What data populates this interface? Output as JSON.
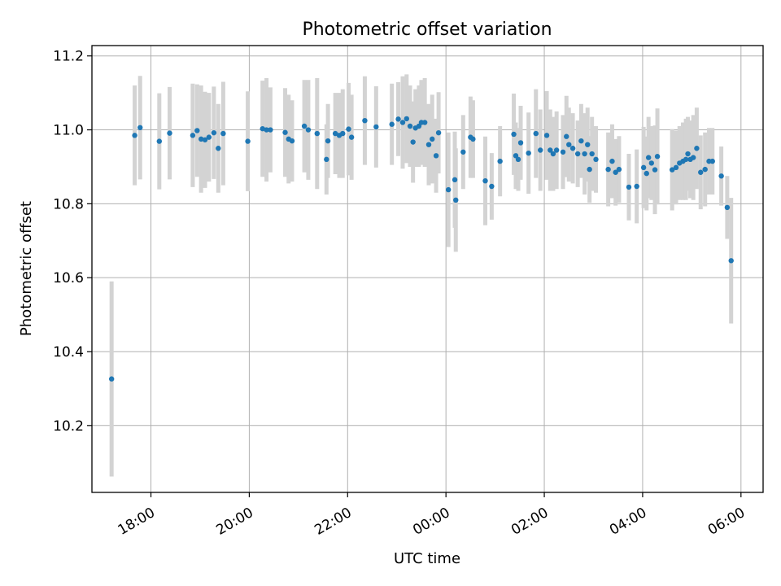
{
  "chart_data": {
    "type": "scatter",
    "title": "Photometric offset variation",
    "xlabel": "UTC time",
    "ylabel": "Photometric offset",
    "xlim_hours": [
      16.8,
      30.45
    ],
    "ylim": [
      10.019,
      11.228
    ],
    "x_ticks": [
      {
        "label": "18:00",
        "value": 18
      },
      {
        "label": "20:00",
        "value": 20
      },
      {
        "label": "22:00",
        "value": 22
      },
      {
        "label": "00:00",
        "value": 24
      },
      {
        "label": "02:00",
        "value": 26
      },
      {
        "label": "04:00",
        "value": 28
      },
      {
        "label": "06:00",
        "value": 30
      }
    ],
    "y_ticks": [
      {
        "label": "10.2",
        "value": 10.2
      },
      {
        "label": "10.4",
        "value": 10.4
      },
      {
        "label": "10.6",
        "value": 10.6
      },
      {
        "label": "10.8",
        "value": 10.8
      },
      {
        "label": "11.0",
        "value": 11.0
      },
      {
        "label": "11.2",
        "value": 11.2
      }
    ],
    "grid": true,
    "point_color": "#1f77b4",
    "errorbar_color": "#d3d3d3",
    "series": [
      {
        "name": "offset",
        "points": [
          [
            17.2,
            10.326,
            0.264
          ],
          [
            17.67,
            10.985,
            0.135
          ],
          [
            17.78,
            11.006,
            0.14
          ],
          [
            18.17,
            10.969,
            0.13
          ],
          [
            18.38,
            10.991,
            0.125
          ],
          [
            18.85,
            10.985,
            0.14
          ],
          [
            18.94,
            10.998,
            0.125
          ],
          [
            19.02,
            10.975,
            0.145
          ],
          [
            19.1,
            10.973,
            0.13
          ],
          [
            19.18,
            10.98,
            0.12
          ],
          [
            19.28,
            10.992,
            0.125
          ],
          [
            19.37,
            10.95,
            0.12
          ],
          [
            19.47,
            10.99,
            0.14
          ],
          [
            19.97,
            10.969,
            0.135
          ],
          [
            20.27,
            11.003,
            0.13
          ],
          [
            20.35,
            11.0,
            0.14
          ],
          [
            20.43,
            11.0,
            0.115
          ],
          [
            20.73,
            10.993,
            0.12
          ],
          [
            20.8,
            10.975,
            0.12
          ],
          [
            20.87,
            10.97,
            0.11
          ],
          [
            21.12,
            11.01,
            0.125
          ],
          [
            21.2,
            11.0,
            0.135
          ],
          [
            21.38,
            10.99,
            0.15
          ],
          [
            21.57,
            10.92,
            0.095
          ],
          [
            21.6,
            10.97,
            0.1
          ],
          [
            21.75,
            10.99,
            0.11
          ],
          [
            21.83,
            10.985,
            0.115
          ],
          [
            21.9,
            10.99,
            0.12
          ],
          [
            22.02,
            11.002,
            0.125
          ],
          [
            22.08,
            10.98,
            0.115
          ],
          [
            22.35,
            11.025,
            0.12
          ],
          [
            22.58,
            11.008,
            0.11
          ],
          [
            22.9,
            11.015,
            0.11
          ],
          [
            23.03,
            11.029,
            0.1
          ],
          [
            23.12,
            11.02,
            0.125
          ],
          [
            23.2,
            11.03,
            0.12
          ],
          [
            23.27,
            11.01,
            0.11
          ],
          [
            23.33,
            10.967,
            0.11
          ],
          [
            23.38,
            11.005,
            0.105
          ],
          [
            23.45,
            11.01,
            0.11
          ],
          [
            23.5,
            11.02,
            0.115
          ],
          [
            23.57,
            11.02,
            0.12
          ],
          [
            23.65,
            10.96,
            0.11
          ],
          [
            23.72,
            10.975,
            0.12
          ],
          [
            23.8,
            10.93,
            0.1
          ],
          [
            23.85,
            10.992,
            0.11
          ],
          [
            24.05,
            10.838,
            0.155
          ],
          [
            24.18,
            10.865,
            0.13
          ],
          [
            24.2,
            10.81,
            0.14
          ],
          [
            24.35,
            10.94,
            0.1
          ],
          [
            24.5,
            10.98,
            0.11
          ],
          [
            24.55,
            10.975,
            0.105
          ],
          [
            24.8,
            10.862,
            0.12
          ],
          [
            24.93,
            10.847,
            0.09
          ],
          [
            25.1,
            10.915,
            0.095
          ],
          [
            25.38,
            10.988,
            0.11
          ],
          [
            25.42,
            10.93,
            0.09
          ],
          [
            25.47,
            10.92,
            0.085
          ],
          [
            25.52,
            10.965,
            0.1
          ],
          [
            25.68,
            10.937,
            0.11
          ],
          [
            25.83,
            10.99,
            0.12
          ],
          [
            25.92,
            10.945,
            0.11
          ],
          [
            26.05,
            10.985,
            0.12
          ],
          [
            26.12,
            10.945,
            0.11
          ],
          [
            26.18,
            10.935,
            0.1
          ],
          [
            26.25,
            10.945,
            0.105
          ],
          [
            26.38,
            10.94,
            0.1
          ],
          [
            26.45,
            10.982,
            0.11
          ],
          [
            26.5,
            10.96,
            0.1
          ],
          [
            26.58,
            10.95,
            0.095
          ],
          [
            26.68,
            10.935,
            0.09
          ],
          [
            26.75,
            10.97,
            0.1
          ],
          [
            26.82,
            10.935,
            0.11
          ],
          [
            26.88,
            10.96,
            0.1
          ],
          [
            26.92,
            10.893,
            0.09
          ],
          [
            26.97,
            10.935,
            0.1
          ],
          [
            27.05,
            10.92,
            0.09
          ],
          [
            27.3,
            10.893,
            0.1
          ],
          [
            27.38,
            10.915,
            0.1
          ],
          [
            27.45,
            10.885,
            0.09
          ],
          [
            27.52,
            10.893,
            0.09
          ],
          [
            27.72,
            10.845,
            0.09
          ],
          [
            27.88,
            10.847,
            0.1
          ],
          [
            28.02,
            10.898,
            0.11
          ],
          [
            28.08,
            10.882,
            0.1
          ],
          [
            28.12,
            10.925,
            0.11
          ],
          [
            28.18,
            10.91,
            0.1
          ],
          [
            28.25,
            10.892,
            0.12
          ],
          [
            28.3,
            10.928,
            0.13
          ],
          [
            28.6,
            10.892,
            0.11
          ],
          [
            28.68,
            10.898,
            0.1
          ],
          [
            28.75,
            10.91,
            0.1
          ],
          [
            28.82,
            10.915,
            0.105
          ],
          [
            28.88,
            10.92,
            0.11
          ],
          [
            28.92,
            10.935,
            0.1
          ],
          [
            28.97,
            10.92,
            0.105
          ],
          [
            29.03,
            10.925,
            0.115
          ],
          [
            29.1,
            10.95,
            0.11
          ],
          [
            29.18,
            10.885,
            0.1
          ],
          [
            29.27,
            10.893,
            0.1
          ],
          [
            29.35,
            10.915,
            0.09
          ],
          [
            29.42,
            10.915,
            0.09
          ],
          [
            29.6,
            10.875,
            0.08
          ],
          [
            29.72,
            10.79,
            0.085
          ],
          [
            29.8,
            10.646,
            0.17
          ]
        ]
      }
    ]
  }
}
